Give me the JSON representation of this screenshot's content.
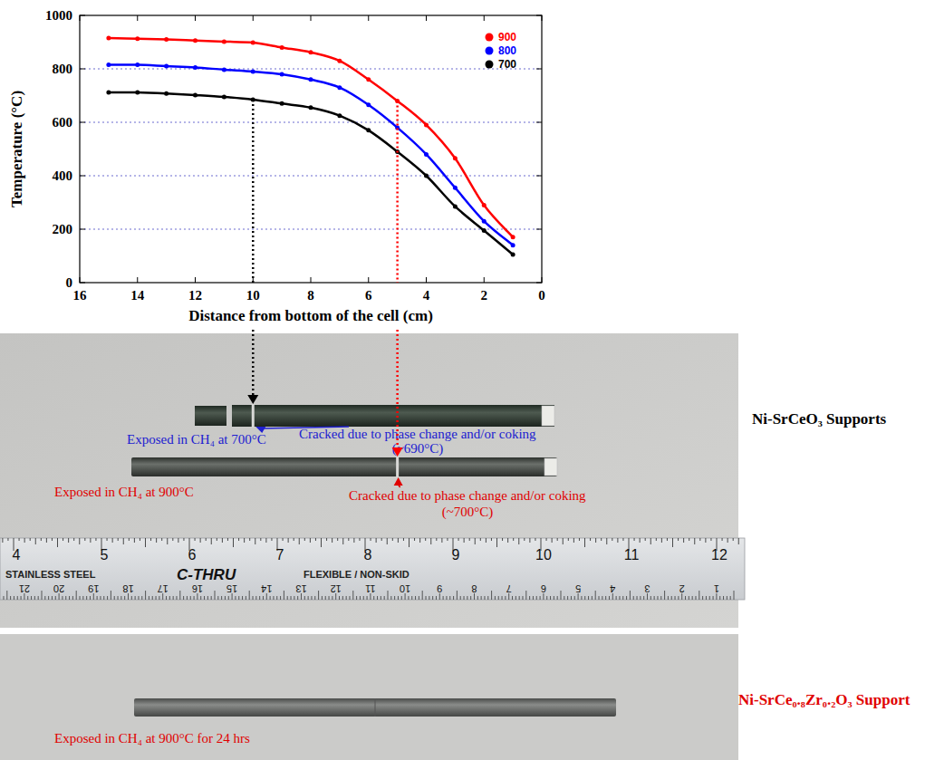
{
  "chart_data": {
    "type": "line",
    "x_label": "Distance from bottom of the cell (cm)",
    "y_label": "Temperature (°C)",
    "x": [
      15,
      14,
      13,
      12,
      11,
      10,
      9,
      8,
      7,
      6,
      5,
      4,
      3,
      2,
      1
    ],
    "xlim": [
      16,
      0
    ],
    "ylim": [
      0,
      1000
    ],
    "xticks": [
      16,
      14,
      12,
      10,
      8,
      6,
      4,
      2,
      0
    ],
    "yticks": [
      0,
      200,
      400,
      600,
      800,
      1000
    ],
    "grid": true,
    "legend": "top-right",
    "marker": "circle",
    "series": [
      {
        "name": "900",
        "color": "#ff0000",
        "values": [
          915,
          913,
          910,
          906,
          902,
          898,
          880,
          862,
          830,
          760,
          680,
          590,
          465,
          290,
          170
        ]
      },
      {
        "name": "800",
        "color": "#0000ff",
        "values": [
          815,
          815,
          810,
          805,
          797,
          790,
          780,
          760,
          730,
          665,
          580,
          480,
          355,
          230,
          140
        ]
      },
      {
        "name": "700",
        "color": "#000000",
        "values": [
          712,
          712,
          708,
          702,
          695,
          685,
          670,
          655,
          625,
          570,
          490,
          400,
          285,
          195,
          105
        ]
      }
    ]
  },
  "photos": {
    "rows": [
      {
        "label": "Ni-SrCeO₃ Supports",
        "color": "#000000",
        "samples": [
          {
            "label": "Exposed in CH₄ at 700°C",
            "color": "#2020d0",
            "crack_label": [
              "Cracked due to phase change and/or coking",
              "(~690°C)"
            ],
            "arrow_x": 10,
            "arrow_series": "700"
          },
          {
            "label": "Exposed in CH₄ at 900°C",
            "color": "#e00000",
            "crack_label": [
              "Cracked due to phase change and/or coking",
              "(~700°C)"
            ],
            "arrow_x": 5,
            "arrow_series": "900"
          }
        ]
      },
      {
        "label": "Ni-SrCe₀.₈Zr₀.₂O₃ Support",
        "color": "#e00000",
        "samples": [
          {
            "label": "Exposed in CH₄ at 900°C for 24 hrs",
            "color": "#e00000"
          }
        ]
      }
    ],
    "ruler": {
      "brand": "C-THRU",
      "texts": [
        "STAINLESS STEEL",
        "FLEXIBLE / NON-SKID"
      ],
      "inch_numbers": [
        4,
        5,
        6,
        7,
        8,
        9,
        10,
        11,
        12
      ],
      "metric_numbers": [
        21,
        20,
        19,
        18,
        17,
        16,
        15,
        14,
        13,
        12,
        11,
        10,
        9,
        8,
        7,
        6,
        5,
        4,
        3,
        2,
        1
      ]
    }
  }
}
